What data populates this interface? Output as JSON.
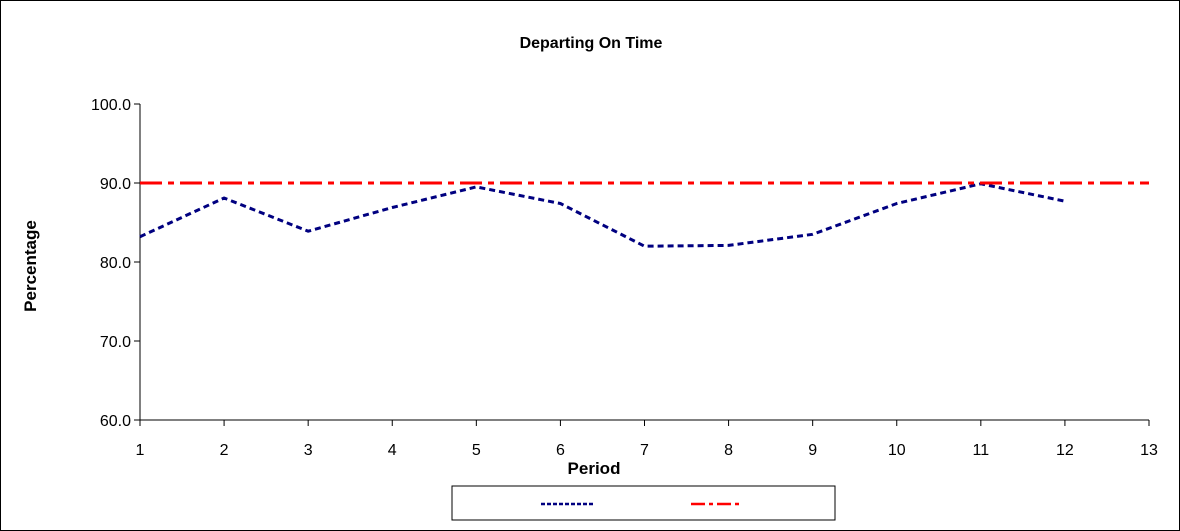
{
  "chart_data": {
    "type": "line",
    "title": "Departing On Time",
    "xlabel": "Period",
    "ylabel": "Percentage",
    "xlim": [
      1,
      13
    ],
    "ylim": [
      60,
      100
    ],
    "x_ticks": [
      "1",
      "2",
      "3",
      "4",
      "5",
      "6",
      "7",
      "8",
      "9",
      "10",
      "11",
      "12",
      "13"
    ],
    "y_ticks": [
      "60.0",
      "70.0",
      "80.0",
      "90.0",
      "100.0"
    ],
    "grid": false,
    "legend_position": "bottom",
    "series": [
      {
        "name": "",
        "color": "#000080",
        "style": "dashed",
        "x": [
          1,
          2,
          3,
          4,
          5,
          6,
          7,
          8,
          9,
          10,
          11,
          12
        ],
        "values": [
          83.2,
          88.1,
          83.9,
          86.9,
          89.5,
          87.4,
          82.0,
          82.1,
          83.5,
          87.4,
          89.9,
          87.7
        ]
      },
      {
        "name": "",
        "color": "#ff0000",
        "style": "dash-dot",
        "x": [
          1,
          13
        ],
        "values": [
          90.0,
          90.0
        ]
      }
    ]
  }
}
